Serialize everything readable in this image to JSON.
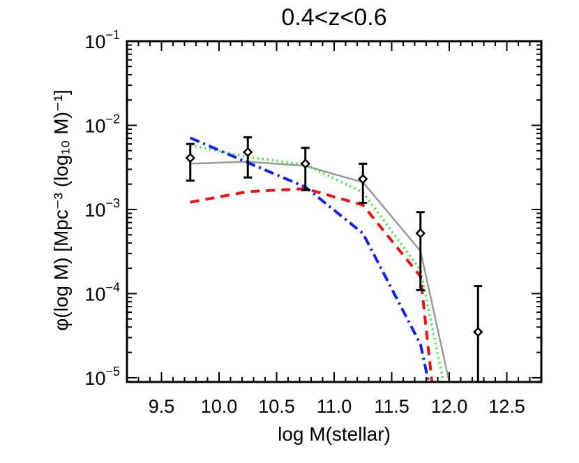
{
  "chart_data": {
    "type": "line",
    "title": "0.4<z<0.6",
    "xlabel": "log M(stellar)",
    "ylabel": "φ(log M) [Mpc⁻³ (log₁₀ M)⁻¹]",
    "xlim": [
      9.2,
      12.8
    ],
    "ylim": [
      8.9e-06,
      0.1
    ],
    "yscale": "log",
    "grid": false,
    "xticks": [
      9.5,
      10.0,
      10.5,
      11.0,
      11.5,
      12.0,
      12.5
    ],
    "xtick_labels": [
      "9.5",
      "10.0",
      "10.5",
      "11.0",
      "11.5",
      "12.0",
      "12.5"
    ],
    "yticks": [
      0.1,
      0.01,
      0.001,
      0.0001,
      1e-05
    ],
    "ytick_labels": [
      {
        "base": "10",
        "exp": "−1"
      },
      {
        "base": "10",
        "exp": "−2"
      },
      {
        "base": "10",
        "exp": "−3"
      },
      {
        "base": "10",
        "exp": "−4"
      },
      {
        "base": "10",
        "exp": "−5"
      }
    ],
    "observations": {
      "marker": "diamond",
      "color": "#000000",
      "points": [
        {
          "x": 9.75,
          "y": 0.0041,
          "ylo": 0.0022,
          "yhi": 0.006
        },
        {
          "x": 10.25,
          "y": 0.0048,
          "ylo": 0.0024,
          "yhi": 0.0072
        },
        {
          "x": 10.75,
          "y": 0.0035,
          "ylo": 0.0017,
          "yhi": 0.0054
        },
        {
          "x": 11.25,
          "y": 0.0023,
          "ylo": 0.0012,
          "yhi": 0.0035
        },
        {
          "x": 11.75,
          "y": 0.00052,
          "ylo": 0.00011,
          "yhi": 0.00093
        },
        {
          "x": 12.25,
          "y": 3.5e-05,
          "ylo": 1e-06,
          "yhi": 0.000123
        }
      ]
    },
    "series": [
      {
        "color": "#999999",
        "dash": "solid",
        "width": 2.5,
        "x": [
          9.75,
          10.25,
          10.75,
          11.25,
          11.75,
          12.0
        ],
        "y": [
          0.0035,
          0.0037,
          0.0033,
          0.0021,
          0.00032,
          8.9e-06
        ]
      },
      {
        "color": "#22ee22",
        "dash": "dotted",
        "width": 3.5,
        "x": [
          9.75,
          10.25,
          10.75,
          11.25,
          11.75,
          11.95
        ],
        "y": [
          0.0058,
          0.0042,
          0.0034,
          0.0016,
          0.00019,
          8.9e-06
        ]
      },
      {
        "color": "#ee1111",
        "dash": "dashed",
        "width": 4,
        "x": [
          9.75,
          10.25,
          10.75,
          11.25,
          11.75,
          11.85
        ],
        "y": [
          0.00122,
          0.00163,
          0.00177,
          0.00113,
          0.00016,
          8.9e-06
        ]
      },
      {
        "color": "#1122ee",
        "dash": "dashdot",
        "width": 4,
        "x": [
          9.75,
          10.25,
          10.75,
          11.25,
          11.75,
          11.82
        ],
        "y": [
          0.0071,
          0.0036,
          0.00185,
          0.00052,
          2.5e-05,
          8.9e-06
        ]
      }
    ]
  }
}
